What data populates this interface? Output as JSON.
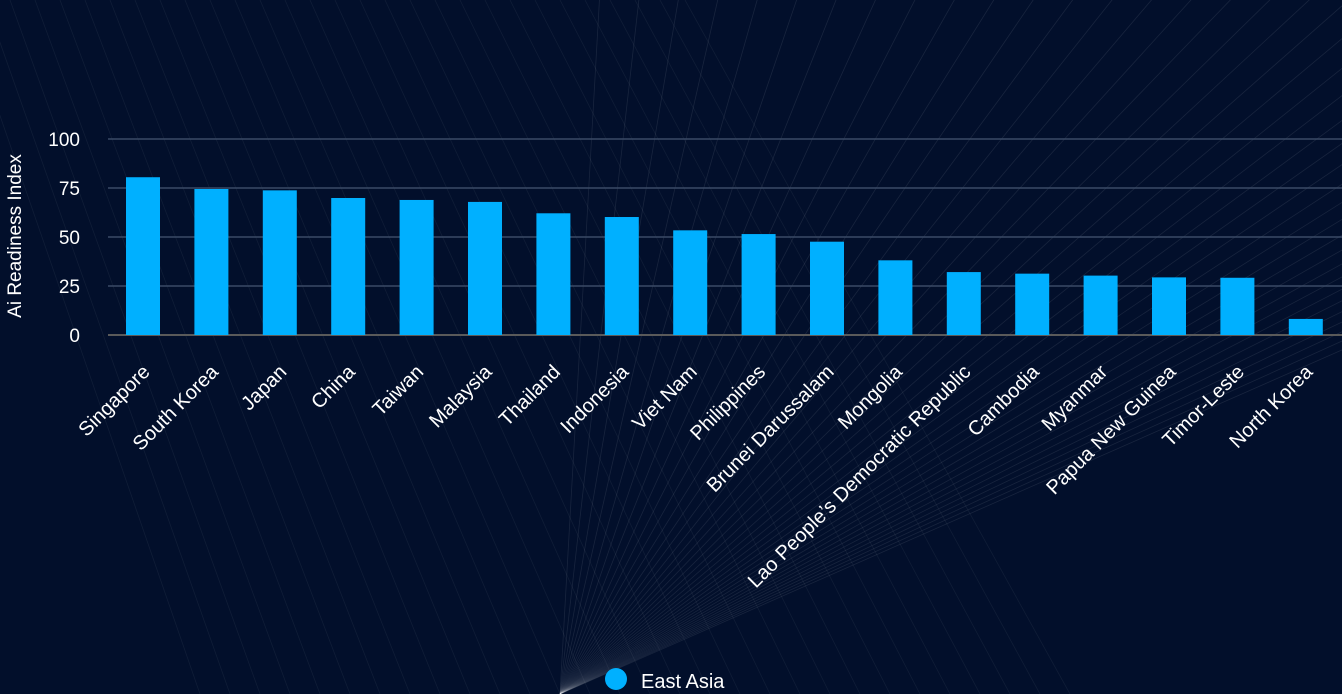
{
  "chart_data": {
    "type": "bar",
    "title": "",
    "xlabel": "",
    "ylabel": "Ai Readiness Index",
    "ylim": [
      0,
      100
    ],
    "yticks": [
      0,
      25,
      50,
      75,
      100
    ],
    "grid": true,
    "legend_position": "bottom-center",
    "categories": [
      "Singapore",
      "South Korea",
      "Japan",
      "China",
      "Taiwan",
      "Malaysia",
      "Thailand",
      "Indonesia",
      "Viet Nam",
      "Philippines",
      "Brunei Darussalam",
      "Mongolia",
      "Lao People’s Democratic Republic",
      "Cambodia",
      "Myanmar",
      "Papua New Guinea",
      "Timor-Leste",
      "North Korea"
    ],
    "series": [
      {
        "name": "East Asia",
        "color": "#00b0ff",
        "values": [
          80.5,
          74.5,
          73.8,
          69.9,
          68.9,
          67.9,
          62.1,
          60.2,
          53.4,
          51.5,
          47.6,
          38.1,
          32.1,
          31.3,
          30.3,
          29.4,
          29.2,
          8.2
        ]
      }
    ]
  },
  "colors": {
    "background": "#020f2b",
    "grid": "#3a4a66",
    "text": "#ffffff",
    "bar": "#00b0ff"
  }
}
